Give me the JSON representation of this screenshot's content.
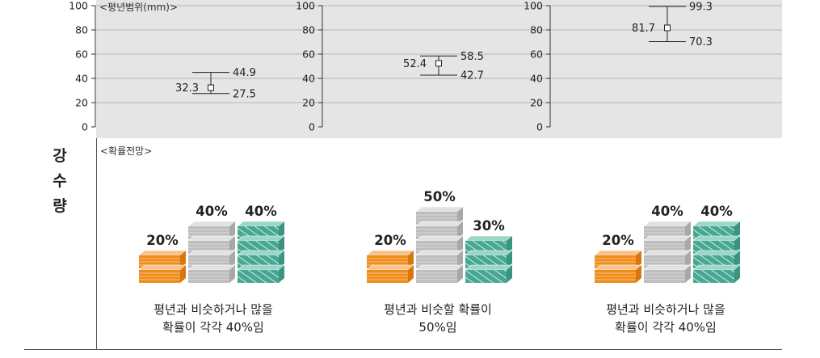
{
  "section_label": "강수량",
  "chart_data": [
    {
      "type": "errorbar",
      "panel_label": "<평년범위(mm)>",
      "ylim": [
        0,
        100
      ],
      "yticks": [
        0,
        20,
        40,
        60,
        80,
        100
      ],
      "grid": true,
      "center_value": 32.3,
      "lower_value": 27.5,
      "upper_value": 44.9,
      "center_label": "32.3",
      "lower_label": "27.5",
      "upper_label": "44.9"
    },
    {
      "type": "errorbar",
      "panel_label": "",
      "ylim": [
        0,
        100
      ],
      "yticks": [
        0,
        20,
        40,
        60,
        80,
        100
      ],
      "grid": true,
      "center_value": 52.4,
      "lower_value": 42.7,
      "upper_value": 58.5,
      "center_label": "52.4",
      "lower_label": "42.7",
      "upper_label": "58.5"
    },
    {
      "type": "errorbar",
      "panel_label": "",
      "ylim": [
        0,
        100
      ],
      "yticks": [
        0,
        20,
        40,
        60,
        80,
        100
      ],
      "grid": true,
      "center_value": 81.7,
      "lower_value": 70.3,
      "upper_value": 99.3,
      "center_label": "81.7",
      "lower_label": "70.3",
      "upper_label": "99.3"
    },
    {
      "type": "bar",
      "panel_label": "<확률전망>",
      "groups": [
        {
          "categories": [
            "below",
            "normal",
            "above"
          ],
          "values": [
            20,
            40,
            40
          ],
          "labels": [
            "20%",
            "40%",
            "40%"
          ],
          "caption": "평년과 비슷하거나 많을\n확률이 각각 40%임"
        },
        {
          "categories": [
            "below",
            "normal",
            "above"
          ],
          "values": [
            20,
            50,
            30
          ],
          "labels": [
            "20%",
            "50%",
            "30%"
          ],
          "caption": "평년과 비슷할 확률이\n50%임"
        },
        {
          "categories": [
            "below",
            "normal",
            "above"
          ],
          "values": [
            20,
            40,
            40
          ],
          "labels": [
            "20%",
            "40%",
            "40%"
          ],
          "caption": "평년과 비슷하거나 많을\n확률이 각각 40%임"
        }
      ]
    }
  ],
  "colors": {
    "panel_bg": "#e5e5e5",
    "grid": "#b5b5b5",
    "below_front": "#f08c1a",
    "below_top": "#f8c38a",
    "normal_front": "#bdbdbd",
    "normal_top": "#e2e2e2",
    "above_front": "#46a892",
    "above_top": "#9bd6c6"
  }
}
